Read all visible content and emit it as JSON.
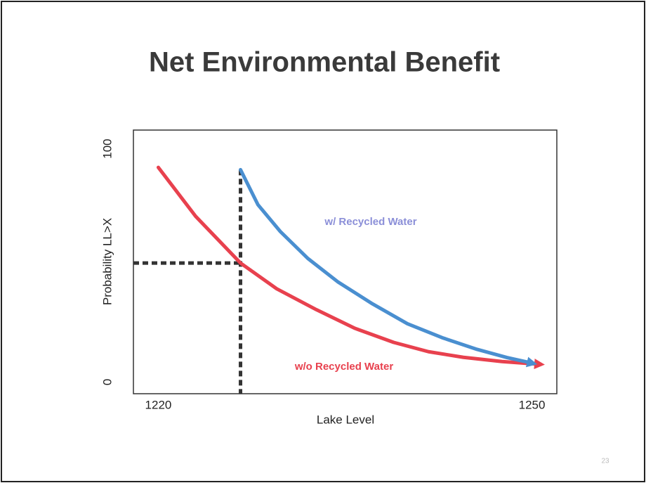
{
  "chart_data": {
    "type": "line",
    "title": "Net Environmental Benefit",
    "x_label": "Lake Level",
    "y_label": "Probability LL>X",
    "xlim": [
      1218,
      1252
    ],
    "xticks": [
      1220,
      1250
    ],
    "ylim": [
      -5,
      108
    ],
    "yticks": [
      0,
      100
    ],
    "grid": false,
    "series": [
      {
        "name": "w/o Recycled Water",
        "color": "#e8414e",
        "x": [
          1220,
          1223,
          1226.6,
          1229.5,
          1232.7,
          1235.8,
          1238.9,
          1241.7,
          1244.5,
          1247.6,
          1250.7
        ],
        "values": [
          92,
          71,
          51,
          40,
          31,
          23,
          17,
          13,
          10.6,
          8.8,
          7.6
        ]
      },
      {
        "name": "w/ Recycled Water",
        "color": "#4a8fd0",
        "x": [
          1226.6,
          1228,
          1229.8,
          1232,
          1234.4,
          1237.2,
          1240,
          1242.8,
          1245.6,
          1248,
          1250.1
        ],
        "values": [
          91,
          76,
          64.5,
          53,
          43,
          33.5,
          25,
          19,
          14,
          10.5,
          8
        ]
      }
    ],
    "annotations": [
      {
        "text": "w/ Recycled Water",
        "color": "#8b8fd8"
      },
      {
        "text": "w/o Recycled Water",
        "color": "#e8414e"
      }
    ],
    "page_number": "23"
  }
}
